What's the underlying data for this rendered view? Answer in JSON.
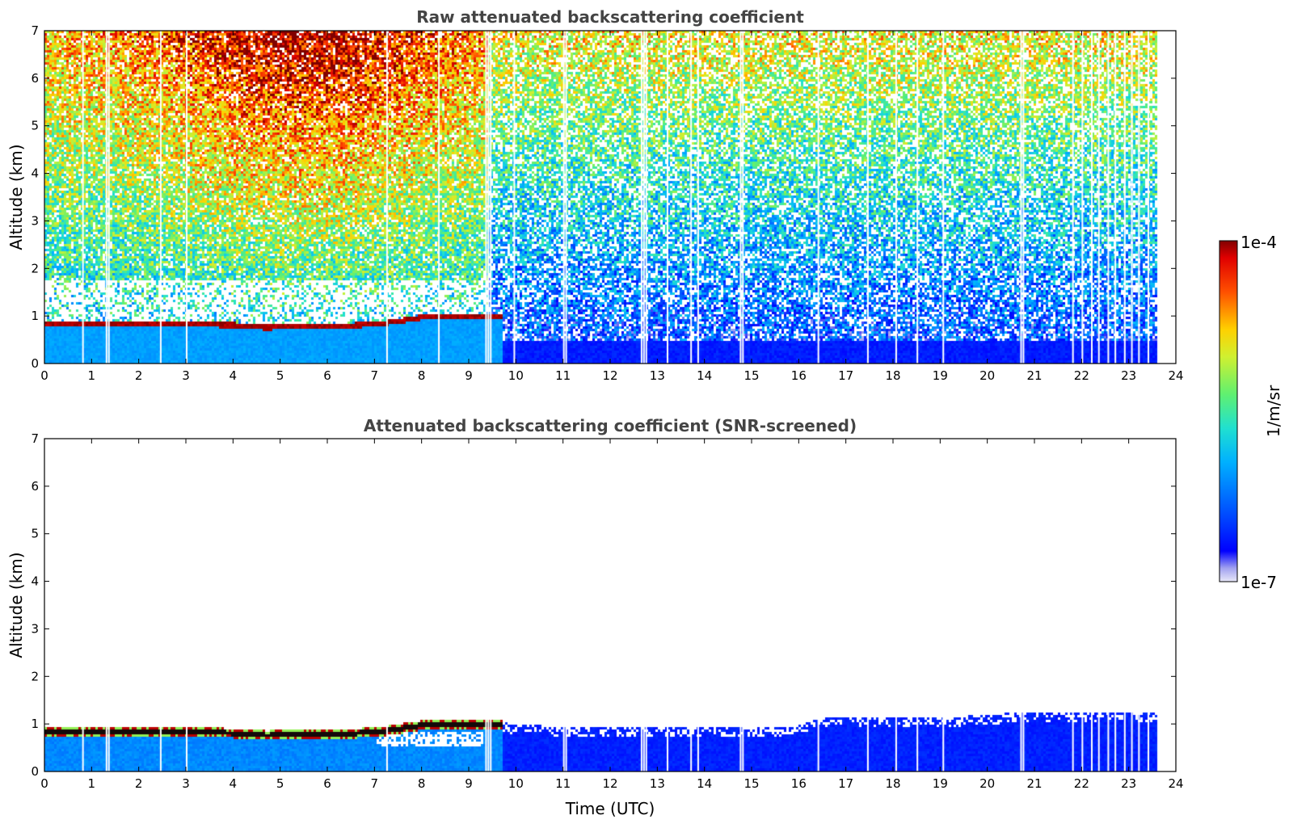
{
  "chart_data": [
    {
      "type": "heatmap",
      "title": "Raw attenuated backscattering coefficient",
      "ylabel": "Altitude (km)",
      "xlabel": "",
      "xlim": [
        0,
        24
      ],
      "ylim": [
        0,
        7
      ],
      "x_ticks": [
        "0",
        "1",
        "2",
        "3",
        "4",
        "5",
        "6",
        "7",
        "8",
        "9",
        "10",
        "11",
        "12",
        "13",
        "14",
        "15",
        "16",
        "17",
        "18",
        "19",
        "20",
        "21",
        "22",
        "23",
        "24"
      ],
      "y_ticks": [
        "0",
        "1",
        "2",
        "3",
        "4",
        "5",
        "6",
        "7"
      ],
      "data_extent_hours": [
        0,
        23.6
      ],
      "cloud_layer": [
        {
          "t": 0,
          "alt": 0.85
        },
        {
          "t": 1,
          "alt": 0.86
        },
        {
          "t": 2,
          "alt": 0.87
        },
        {
          "t": 3,
          "alt": 0.85
        },
        {
          "t": 4,
          "alt": 0.83
        },
        {
          "t": 4.7,
          "alt": 0.78
        },
        {
          "t": 5,
          "alt": 0.8
        },
        {
          "t": 6,
          "alt": 0.8
        },
        {
          "t": 7,
          "alt": 0.85
        },
        {
          "t": 7.5,
          "alt": 0.92
        },
        {
          "t": 8,
          "alt": 1.0
        },
        {
          "t": 9,
          "alt": 1.02
        },
        {
          "t": 9.6,
          "alt": 1.02
        }
      ],
      "data_gaps_hours": [
        0.8,
        1.3,
        1.35,
        2.45,
        3.0,
        7.25,
        8.35,
        9.35,
        9.4,
        9.45,
        9.95,
        11.0,
        11.05,
        12.65,
        12.7,
        12.75,
        13.2,
        13.7,
        13.85,
        14.75,
        14.8,
        16.4,
        17.45,
        18.05,
        18.5,
        19.05,
        20.7,
        20.75,
        21.8,
        22.0,
        22.2,
        22.35,
        22.55,
        22.7,
        22.9,
        23.05,
        23.2,
        23.4
      ]
    },
    {
      "type": "heatmap",
      "title": "Attenuated backscattering coefficient (SNR-screened)",
      "ylabel": "Altitude (km)",
      "xlabel": "Time (UTC)",
      "xlim": [
        0,
        24
      ],
      "ylim": [
        0,
        7
      ],
      "x_ticks": [
        "0",
        "1",
        "2",
        "3",
        "4",
        "5",
        "6",
        "7",
        "8",
        "9",
        "10",
        "11",
        "12",
        "13",
        "14",
        "15",
        "16",
        "17",
        "18",
        "19",
        "20",
        "21",
        "22",
        "23",
        "24"
      ],
      "y_ticks": [
        "0",
        "1",
        "2",
        "3",
        "4",
        "5",
        "6",
        "7"
      ],
      "data_extent_hours": [
        0,
        23.6
      ],
      "screened_top": [
        {
          "t": 0,
          "alt": 0.95
        },
        {
          "t": 9.6,
          "alt": 1.05
        },
        {
          "t": 11,
          "alt": 0.95
        },
        {
          "t": 15.8,
          "alt": 0.95
        },
        {
          "t": 16.5,
          "alt": 1.15
        },
        {
          "t": 19,
          "alt": 1.15
        },
        {
          "t": 20.5,
          "alt": 1.25
        },
        {
          "t": 23.6,
          "alt": 1.25
        }
      ],
      "data_gaps_hours": [
        0.8,
        1.3,
        1.35,
        2.45,
        3.0,
        7.25,
        9.35,
        9.4,
        9.45,
        11.0,
        11.05,
        12.65,
        12.7,
        12.75,
        13.2,
        13.7,
        13.85,
        14.75,
        14.8,
        16.4,
        17.45,
        18.05,
        18.5,
        19.05,
        20.7,
        20.75,
        21.8,
        22.0,
        22.2,
        22.35,
        22.55,
        22.7,
        22.9,
        23.05,
        23.2,
        23.4
      ]
    }
  ],
  "colorbar": {
    "max_label": "1e-4",
    "min_label": "1e-7",
    "unit_label": "1/m/sr",
    "range": [
      1e-07,
      0.0001
    ],
    "scale": "log",
    "colormap": "jet"
  }
}
